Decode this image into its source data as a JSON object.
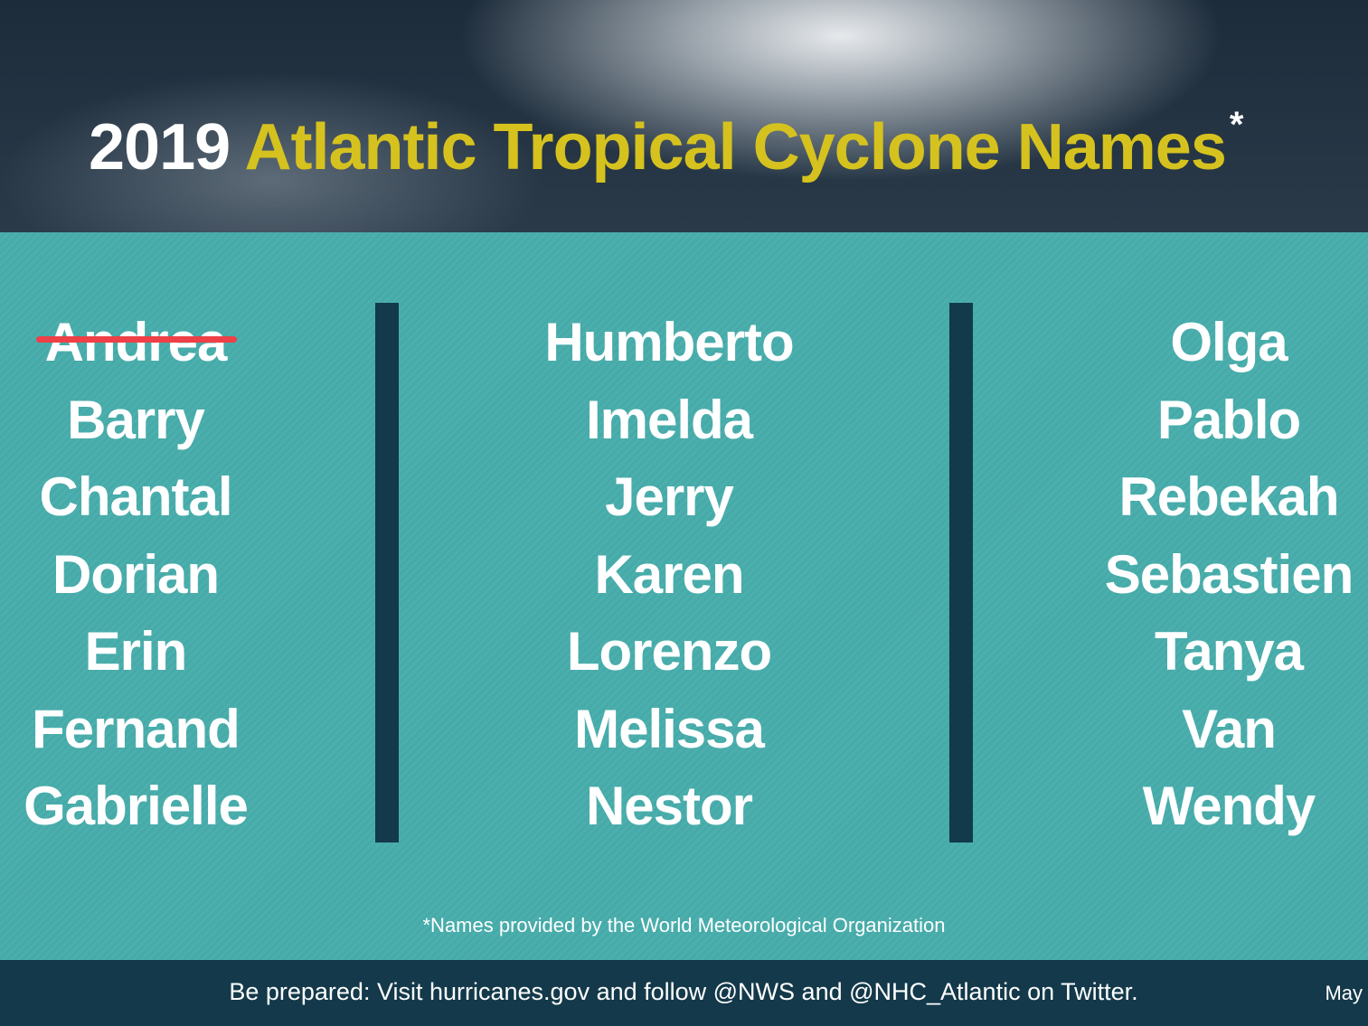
{
  "header": {
    "year": "2019",
    "title": "Atlantic Tropical Cyclone Names",
    "asterisk": "*"
  },
  "columns": [
    [
      "Andrea",
      "Barry",
      "Chantal",
      "Dorian",
      "Erin",
      "Fernand",
      "Gabrielle"
    ],
    [
      "Humberto",
      "Imelda",
      "Jerry",
      "Karen",
      "Lorenzo",
      "Melissa",
      "Nestor"
    ],
    [
      "Olga",
      "Pablo",
      "Rebekah",
      "Sebastien",
      "Tanya",
      "Van",
      "Wendy"
    ]
  ],
  "crossed_out": "Andrea",
  "footnote": "*Names provided by the World Meteorological Organization",
  "footer": {
    "message": "Be prepared: Visit hurricanes.gov and follow @NWS and @NHC_Atlantic on Twitter.",
    "date": "May"
  },
  "colors": {
    "teal": "#4aafad",
    "navy": "#13394a",
    "yellow": "#d6c21e",
    "strike": "#ef3f47"
  }
}
